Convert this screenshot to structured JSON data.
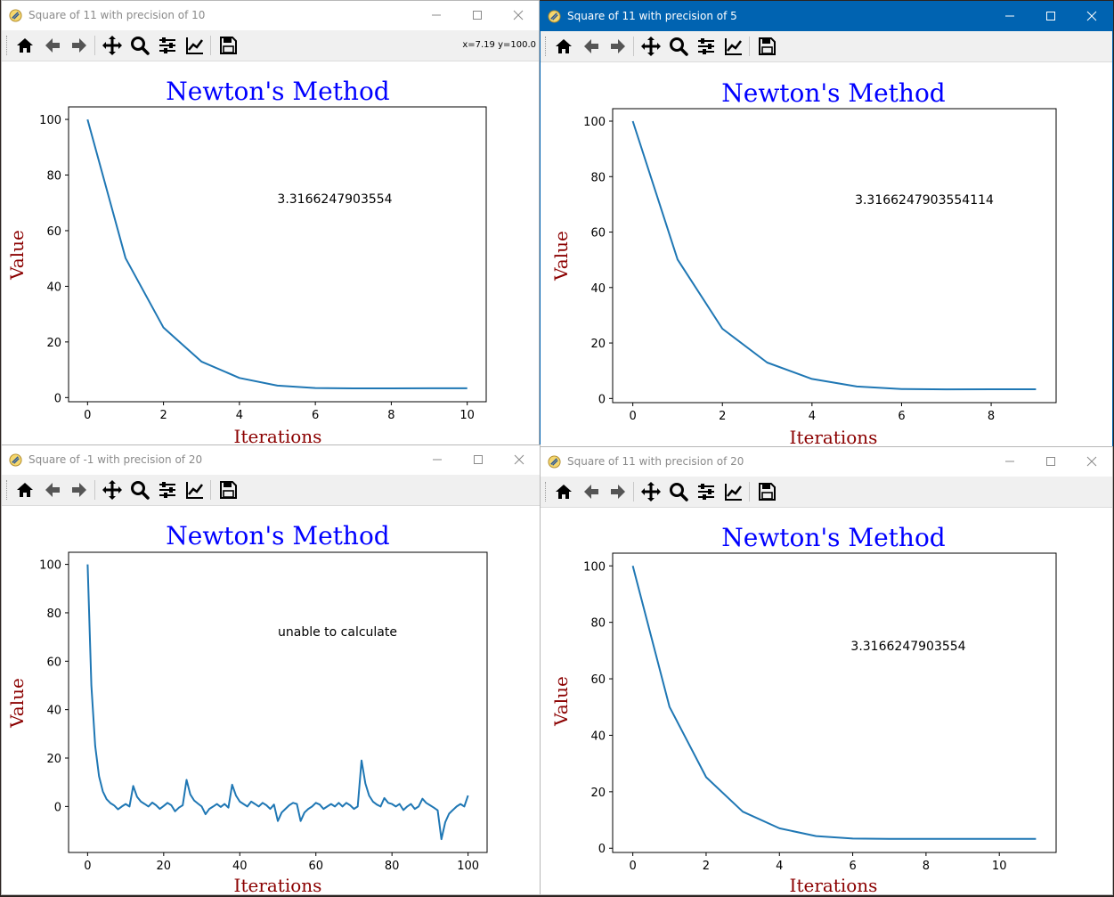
{
  "windows": [
    {
      "title": "Square of 11 with precision of 10",
      "active": false,
      "coord_readout": "x=7.19 y=100.0",
      "toolbar_icons": [
        "home-icon",
        "back-arrow-icon",
        "forward-arrow-icon",
        "pan-icon",
        "zoom-icon",
        "configure-subplots-icon",
        "edit-axis-icon",
        "save-icon"
      ],
      "chart_data": {
        "type": "line",
        "title": "Newton's Method",
        "xlabel": "Iterations",
        "ylabel": "Value",
        "annotation": "3.3166247903554",
        "x": [
          0,
          1,
          2,
          3,
          4,
          5,
          6,
          7,
          8,
          9,
          10
        ],
        "y": [
          100,
          50.11,
          25.16,
          12.95,
          7.05,
          4.3,
          3.43,
          3.3,
          3.31,
          3.32,
          3.32
        ],
        "xlim": [
          -0.5,
          10.5
        ],
        "ylim": [
          -1.5,
          104.5
        ],
        "xticks": [
          "0",
          "2",
          "4",
          "6",
          "8",
          "10"
        ],
        "yticks": [
          "0",
          "20",
          "40",
          "60",
          "80",
          "100"
        ],
        "colors": {
          "line": "#1f77b4",
          "title": "#0000ff",
          "label": "#8b0000"
        }
      }
    },
    {
      "title": "Square of 11 with precision of 5",
      "active": true,
      "coord_readout": "",
      "toolbar_icons": [
        "home-icon",
        "back-arrow-icon",
        "forward-arrow-icon",
        "pan-icon",
        "zoom-icon",
        "configure-subplots-icon",
        "edit-axis-icon",
        "save-icon"
      ],
      "chart_data": {
        "type": "line",
        "title": "Newton's Method",
        "xlabel": "Iterations",
        "ylabel": "Value",
        "annotation": "3.3166247903554114",
        "x": [
          0,
          1,
          2,
          3,
          4,
          5,
          6,
          7,
          8,
          9
        ],
        "y": [
          100,
          50.11,
          25.16,
          12.95,
          7.05,
          4.3,
          3.43,
          3.3,
          3.31,
          3.32
        ],
        "xlim": [
          -0.45,
          9.45
        ],
        "ylim": [
          -1.5,
          104.5
        ],
        "xticks": [
          "0",
          "2",
          "4",
          "6",
          "8"
        ],
        "yticks": [
          "0",
          "20",
          "40",
          "60",
          "80",
          "100"
        ],
        "colors": {
          "line": "#1f77b4",
          "title": "#0000ff",
          "label": "#8b0000"
        }
      }
    },
    {
      "title": "Square of -1 with precision of 20",
      "active": false,
      "coord_readout": "",
      "toolbar_icons": [
        "home-icon",
        "back-arrow-icon",
        "forward-arrow-icon",
        "pan-icon",
        "zoom-icon",
        "configure-subplots-icon",
        "edit-axis-icon",
        "save-icon"
      ],
      "chart_data": {
        "type": "line",
        "title": "Newton's Method",
        "xlabel": "Iterations",
        "ylabel": "Value",
        "annotation": "unable to calculate",
        "x": [
          0,
          1,
          2,
          3,
          4,
          5,
          6,
          7,
          8,
          9,
          10,
          11,
          12,
          13,
          14,
          15,
          16,
          17,
          18,
          19,
          20,
          21,
          22,
          23,
          24,
          25,
          26,
          27,
          28,
          29,
          30,
          31,
          32,
          33,
          34,
          35,
          36,
          37,
          38,
          39,
          40,
          41,
          42,
          43,
          44,
          45,
          46,
          47,
          48,
          49,
          50,
          51,
          52,
          53,
          54,
          55,
          56,
          57,
          58,
          59,
          60,
          61,
          62,
          63,
          64,
          65,
          66,
          67,
          68,
          69,
          70,
          71,
          72,
          73,
          74,
          75,
          76,
          77,
          78,
          79,
          80,
          81,
          82,
          83,
          84,
          85,
          86,
          87,
          88,
          89,
          90,
          91,
          92,
          93,
          94,
          95,
          96,
          97,
          98,
          99,
          100
        ],
        "y": [
          100,
          50,
          25,
          12.5,
          6.2,
          3,
          1.4,
          0.4,
          -1.2,
          0,
          1,
          0,
          8.5,
          4,
          2,
          1,
          0,
          1.6,
          0.5,
          -1,
          0.2,
          1.5,
          0.5,
          -2,
          -0.5,
          0.5,
          11,
          5,
          2.5,
          1.2,
          0,
          -3.2,
          -1,
          0,
          1,
          -0.2,
          1,
          -0.5,
          9,
          4.5,
          2,
          1,
          0,
          2,
          1,
          0,
          1.5,
          0.5,
          -1,
          0.8,
          -6,
          -2.5,
          -1,
          0.5,
          1.5,
          1,
          -6,
          -2.5,
          -1,
          0,
          1.5,
          0.8,
          -1,
          0,
          1,
          0,
          1.5,
          0,
          1.5,
          0.5,
          -1,
          0,
          19,
          9.5,
          4.5,
          2,
          0.8,
          0,
          3.5,
          1.5,
          1,
          0,
          1,
          -1.5,
          0,
          1,
          -1,
          0,
          3.2,
          1.5,
          0.5,
          -0.5,
          -1.6,
          -13.5,
          -6.5,
          -3,
          -1.5,
          0,
          1,
          0,
          4.5
        ],
        "xlim": [
          -5,
          105
        ],
        "ylim": [
          -19,
          105
        ],
        "xticks": [
          "0",
          "20",
          "40",
          "60",
          "80",
          "100"
        ],
        "yticks": [
          "0",
          "20",
          "40",
          "60",
          "80",
          "100"
        ],
        "colors": {
          "line": "#1f77b4",
          "title": "#0000ff",
          "label": "#8b0000"
        }
      }
    },
    {
      "title": "Square of 11 with precision of 20",
      "active": false,
      "coord_readout": "",
      "toolbar_icons": [
        "home-icon",
        "back-arrow-icon",
        "forward-arrow-icon",
        "pan-icon",
        "zoom-icon",
        "configure-subplots-icon",
        "edit-axis-icon",
        "save-icon"
      ],
      "chart_data": {
        "type": "line",
        "title": "Newton's Method",
        "xlabel": "Iterations",
        "ylabel": "Value",
        "annotation": "3.3166247903554",
        "x": [
          0,
          1,
          2,
          3,
          4,
          5,
          6,
          7,
          8,
          9,
          10,
          11
        ],
        "y": [
          100,
          50.11,
          25.16,
          12.95,
          7.05,
          4.3,
          3.43,
          3.3,
          3.31,
          3.32,
          3.32,
          3.32
        ],
        "xlim": [
          -0.55,
          11.55
        ],
        "ylim": [
          -1.5,
          104.5
        ],
        "xticks": [
          "0",
          "2",
          "4",
          "6",
          "8",
          "10"
        ],
        "yticks": [
          "0",
          "20",
          "40",
          "60",
          "80",
          "100"
        ],
        "colors": {
          "line": "#1f77b4",
          "title": "#0000ff",
          "label": "#8b0000"
        }
      }
    }
  ]
}
